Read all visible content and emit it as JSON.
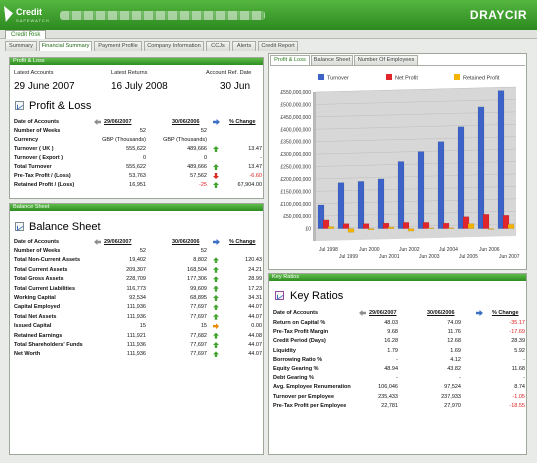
{
  "header": {
    "logo_title": "Credit",
    "logo_sub": "SAFEWATCH",
    "brand": "DRAYCIR",
    "section_tab": "Credit Risk"
  },
  "subtabs": [
    "Summary",
    "Financial Summary",
    "Payment Profile",
    "Company Information",
    "CCJs",
    "Alerts",
    "Credit Report"
  ],
  "active_subtab": "Financial Summary",
  "profit_loss": {
    "bar_title": "Profit & Loss",
    "latest_accounts_label": "Latest Accounts",
    "latest_accounts_value": "29 June 2007",
    "latest_returns_label": "Latest Returns",
    "latest_returns_value": "16 July 2008",
    "ref_date_label": "Account Ref. Date",
    "ref_date_value": "30 Jun",
    "title": "Profit & Loss",
    "header": {
      "label": "Date of Accounts",
      "col1": "29/06/2007",
      "col2": "30/06/2006",
      "change": "% Change"
    },
    "rows": [
      {
        "label": "Number of Weeks",
        "v1": "52",
        "v2": "52",
        "change": "",
        "trend": ""
      },
      {
        "label": "Currency",
        "v1": "GBP (Thousands)",
        "v2": "GBP (Thousands)",
        "change": "",
        "trend": ""
      },
      {
        "label": "Turnover ( UK )",
        "v1": "555,622",
        "v2": "489,666",
        "change": "13.47",
        "trend": "up"
      },
      {
        "label": "Turnover ( Export )",
        "v1": "0",
        "v2": "0",
        "change": "-",
        "trend": ""
      },
      {
        "label": "Total Turnover",
        "v1": "555,622",
        "v2": "489,666",
        "change": "13.47",
        "trend": "up"
      },
      {
        "label": "Pre-Tax Profit / (Loss)",
        "v1": "53,763",
        "v2": "57,562",
        "change": "-6.60",
        "trend": "down"
      },
      {
        "label": "Retained Profit / (Loss)",
        "v1": "16,951",
        "v2": "-25",
        "change": "67,904.00",
        "trend": "up"
      }
    ]
  },
  "balance_sheet": {
    "bar_title": "Balance Sheet",
    "title": "Balance Sheet",
    "header": {
      "label": "Date of Accounts",
      "col1": "29/06/2007",
      "col2": "30/06/2006",
      "change": "% Change"
    },
    "rows": [
      {
        "label": "Number of Weeks",
        "v1": "52",
        "v2": "52",
        "change": "",
        "trend": ""
      },
      {
        "label": "Total Non-Current Assets",
        "v1": "19,402",
        "v2": "8,802",
        "change": "120.43",
        "trend": "up"
      },
      {
        "label": "Total Current Assets",
        "v1": "209,307",
        "v2": "168,504",
        "change": "24.21",
        "trend": "up"
      },
      {
        "label": "Total Gross Assets",
        "v1": "228,709",
        "v2": "177,306",
        "change": "28.99",
        "trend": "up"
      },
      {
        "label": "Total Current Liabilities",
        "v1": "116,773",
        "v2": "99,609",
        "change": "17.23",
        "trend": "up"
      },
      {
        "label": "Working Capital",
        "v1": "92,534",
        "v2": "68,895",
        "change": "34.31",
        "trend": "up"
      },
      {
        "label": "Capital Employed",
        "v1": "111,936",
        "v2": "77,697",
        "change": "44.07",
        "trend": "up"
      },
      {
        "label": "Total Net Assets",
        "v1": "111,936",
        "v2": "77,697",
        "change": "44.07",
        "trend": "up"
      },
      {
        "label": "Issued Capital",
        "v1": "15",
        "v2": "15",
        "change": "0.00",
        "trend": "flat"
      },
      {
        "label": "Retained Earnings",
        "v1": "111,921",
        "v2": "77,682",
        "change": "44.08",
        "trend": "up"
      },
      {
        "label": "Total Shareholders' Funds",
        "v1": "111,936",
        "v2": "77,697",
        "change": "44.07",
        "trend": "up"
      },
      {
        "label": "Net Worth",
        "v1": "111,936",
        "v2": "77,697",
        "change": "44.07",
        "trend": "up"
      }
    ]
  },
  "chart_tabs": [
    "Profit & Loss",
    "Balance Sheet",
    "Number Of Employees"
  ],
  "active_chart_tab": "Profit & Loss",
  "chart_data": {
    "type": "bar",
    "categories": [
      "Jul 1998",
      "Jul 1999",
      "Jun 2000",
      "Jun 2001",
      "Jun 2002",
      "Jun 2003",
      "Jul 2004",
      "Jul 2005",
      "Jun 2006",
      "Jun 2007"
    ],
    "series": [
      {
        "name": "Turnover",
        "color": "#3d63c9",
        "values": [
          95000000,
          185000000,
          190000000,
          200000000,
          270000000,
          310000000,
          350000000,
          410000000,
          490000000,
          555622000
        ]
      },
      {
        "name": "Net Profit",
        "color": "#e0262c",
        "values": [
          35000000,
          20000000,
          20000000,
          22000000,
          25000000,
          25000000,
          22000000,
          48000000,
          57562000,
          53763000
        ]
      },
      {
        "name": "Retained Profit",
        "color": "#f2b400",
        "values": [
          8000000,
          -15000000,
          -5000000,
          6000000,
          -10000000,
          3000000,
          3000000,
          20000000,
          -25000,
          16951000
        ]
      }
    ],
    "ylim": [
      -50000000,
      550000000
    ],
    "yticks": [
      "£550,000,000",
      "£500,000,000",
      "£450,000,000",
      "£400,000,000",
      "£350,000,000",
      "£300,000,000",
      "£250,000,000",
      "£200,000,000",
      "£150,000,000",
      "£100,000,000",
      "£50,000,000",
      "£0"
    ],
    "ytick_values": [
      550000000,
      500000000,
      450000000,
      400000000,
      350000000,
      300000000,
      250000000,
      200000000,
      150000000,
      100000000,
      50000000,
      0
    ],
    "xlabels_top": [
      "Jul 1998",
      "Jun 2000",
      "Jun 2002",
      "Jul 2004",
      "Jun 2006"
    ],
    "xlabels_bottom": [
      "Jul 1999",
      "Jun 2001",
      "Jun 2003",
      "Jul 2005",
      "Jun 2007"
    ],
    "legend_position": "top",
    "grid": true
  },
  "key_ratios": {
    "bar_title": "Key Ratios",
    "title": "Key Ratios",
    "header": {
      "label": "Date of Accounts",
      "col1": "29/06/2007",
      "col2": "30/06/2006",
      "change": "% Change"
    },
    "rows": [
      {
        "label": "Return on Capital %",
        "v1": "48.03",
        "v2": "74.09",
        "change": "-35.17",
        "neg": true
      },
      {
        "label": "Pre-Tax Profit Margin",
        "v1": "9.68",
        "v2": "11.76",
        "change": "-17.69",
        "neg": true
      },
      {
        "label": "Credit Period (Days)",
        "v1": "16.28",
        "v2": "12.68",
        "change": "28.39",
        "neg": false
      },
      {
        "label": "Liquidity",
        "v1": "1.79",
        "v2": "1.69",
        "change": "5.92",
        "neg": false
      },
      {
        "label": "Borrowing Ratio %",
        "v1": "-",
        "v2": "4.12",
        "change": "-",
        "neg": false
      },
      {
        "label": "Equity Gearing %",
        "v1": "48.94",
        "v2": "43.82",
        "change": "11.68",
        "neg": false
      },
      {
        "label": "Debt Gearing %",
        "v1": "-",
        "v2": "-",
        "change": "-",
        "neg": false
      },
      {
        "label": "Avg. Employee Renumeration",
        "v1": "106,046",
        "v2": "97,524",
        "change": "8.74",
        "neg": false
      },
      {
        "label": "Turnover per Employee",
        "v1": "235,433",
        "v2": "237,933",
        "change": "-1.05",
        "neg": true
      },
      {
        "label": "Pre-Tax Profit per Employee",
        "v1": "22,781",
        "v2": "27,970",
        "change": "-18.55",
        "neg": true
      }
    ]
  }
}
